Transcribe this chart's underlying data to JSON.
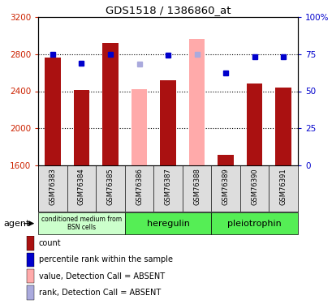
{
  "title": "GDS1518 / 1386860_at",
  "categories": [
    "GSM76383",
    "GSM76384",
    "GSM76385",
    "GSM76386",
    "GSM76387",
    "GSM76388",
    "GSM76389",
    "GSM76390",
    "GSM76391"
  ],
  "bar_values": [
    2760,
    2410,
    2920,
    null,
    2520,
    null,
    1720,
    2480,
    2440
  ],
  "bar_absent": [
    null,
    null,
    null,
    2420,
    null,
    2960,
    null,
    null,
    null
  ],
  "rank_values": [
    75,
    69,
    75,
    null,
    74,
    null,
    62,
    73,
    73
  ],
  "rank_absent": [
    null,
    null,
    null,
    68,
    null,
    75,
    null,
    null,
    null
  ],
  "ylim": [
    1600,
    3200
  ],
  "yticks": [
    1600,
    2000,
    2400,
    2800,
    3200
  ],
  "ytick_labels": [
    "1600",
    "2000",
    "2400",
    "2800",
    "3200"
  ],
  "right_yticks": [
    0,
    25,
    50,
    75,
    100
  ],
  "right_ytick_labels": [
    "0",
    "25",
    "50",
    "75",
    "100%"
  ],
  "bar_color": "#aa1111",
  "bar_absent_color": "#ffaaaa",
  "rank_color": "#0000cc",
  "rank_absent_color": "#aaaadd",
  "agent_groups": [
    {
      "label": "conditioned medium from\nBSN cells",
      "start": 0,
      "end": 3,
      "color": "#ccffcc"
    },
    {
      "label": "heregulin",
      "start": 3,
      "end": 6,
      "color": "#55ee55"
    },
    {
      "label": "pleiotrophin",
      "start": 6,
      "end": 9,
      "color": "#55ee55"
    }
  ],
  "legend_items": [
    {
      "label": "count",
      "color": "#aa1111"
    },
    {
      "label": "percentile rank within the sample",
      "color": "#0000cc"
    },
    {
      "label": "value, Detection Call = ABSENT",
      "color": "#ffaaaa"
    },
    {
      "label": "rank, Detection Call = ABSENT",
      "color": "#aaaadd"
    }
  ],
  "left_tick_color": "#cc2200",
  "right_tick_color": "#0000cc",
  "bar_width": 0.55,
  "grid_lines": [
    2000,
    2400,
    2800
  ]
}
